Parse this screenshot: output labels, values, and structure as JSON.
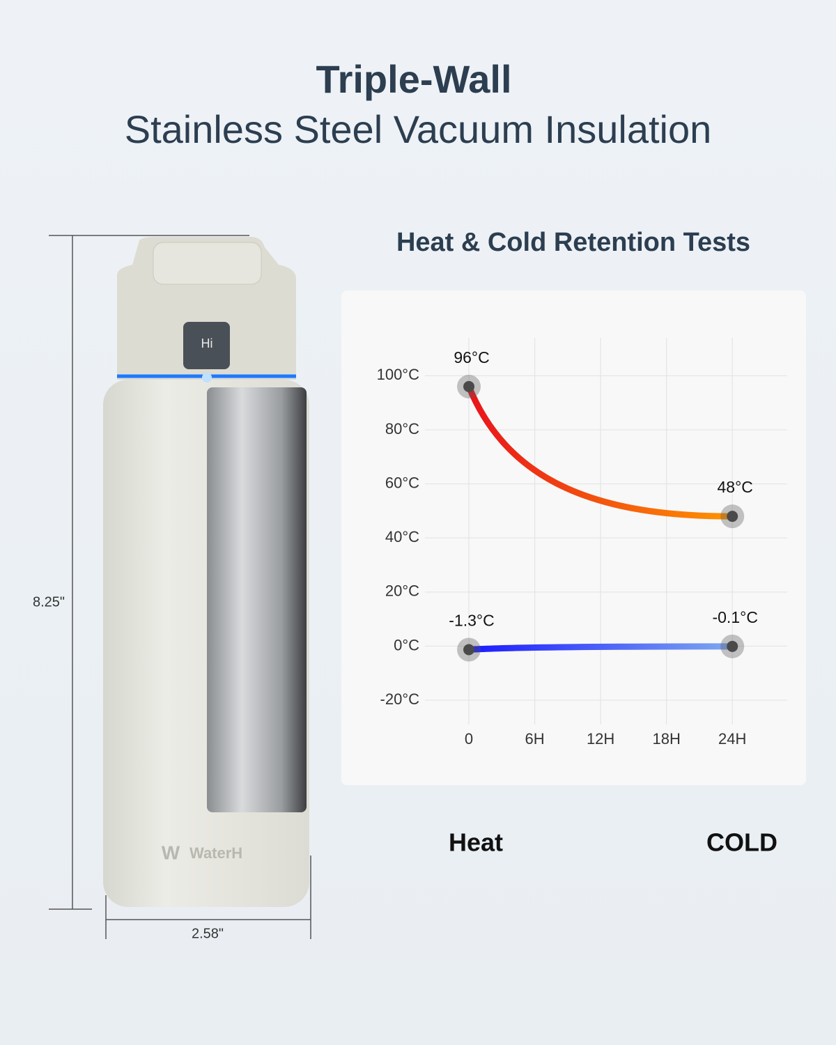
{
  "header": {
    "title": "Triple-Wall",
    "subtitle": "Stainless Steel Vacuum Insulation"
  },
  "product": {
    "height": "8.25\"",
    "width": "2.58\"",
    "brand": "WaterH",
    "badge": "Hi"
  },
  "chart_data": {
    "type": "line",
    "title": "Heat & Cold Retention Tests",
    "x": [
      0,
      24
    ],
    "series": [
      {
        "name": "Heat",
        "color": "#e8141c",
        "color_end": "#ff9400",
        "values": [
          96,
          48
        ],
        "value_labels": [
          "96°C",
          "48°C"
        ]
      },
      {
        "name": "COLD",
        "color": "#1a1aff",
        "color_end": "#7ea8f0",
        "values": [
          -1.3,
          -0.1
        ],
        "value_labels": [
          "-1.3°C",
          "-0.1°C"
        ]
      }
    ],
    "xlim": [
      -4,
      29
    ],
    "xticks": [
      0,
      {
        "value": 6,
        "label": "6H"
      },
      {
        "value": 12,
        "label": "12H"
      },
      {
        "value": 18,
        "label": "18H"
      },
      {
        "value": 24,
        "label": "24H"
      }
    ],
    "ylim": [
      -29,
      114
    ],
    "yticks": [
      {
        "value": -20,
        "label": "-20°C"
      },
      {
        "value": 0,
        "label": "0°C"
      },
      {
        "value": 20,
        "label": "20°C"
      },
      {
        "value": 40,
        "label": "40°C"
      },
      {
        "value": 60,
        "label": "60°C"
      },
      {
        "value": 80,
        "label": "80°C"
      },
      {
        "value": 100,
        "label": "100°C"
      }
    ],
    "grid": true,
    "legend": "bottom"
  }
}
